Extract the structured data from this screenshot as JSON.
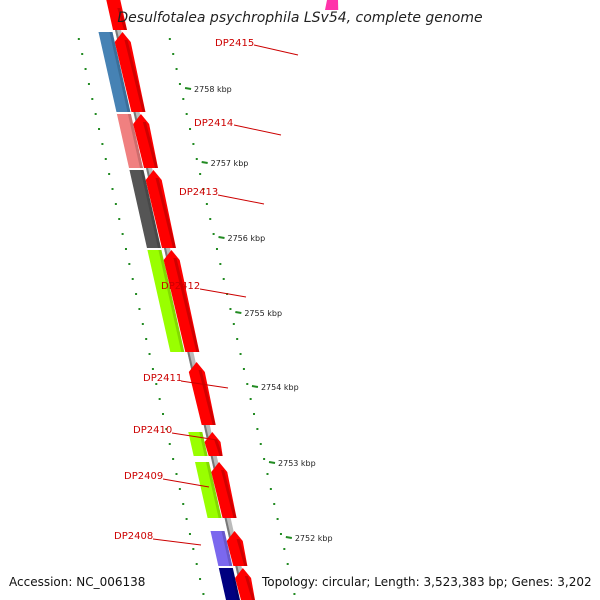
{
  "title": "Desulfotalea psychrophila LSv54, complete genome",
  "footer": {
    "accession": "Accession: NC_006138",
    "summary": "Topology: circular; Length: 3,523,383 bp; Genes: 3,202"
  },
  "colors": {
    "forward_gene": "#ff0000",
    "backbone": "#888888",
    "label_text": "#cc0000",
    "tick": "#228b22",
    "pink": "#ff33aa",
    "blue": "#4682b4",
    "salmon": "#f08080",
    "dark_gray": "#555555",
    "lime": "#99ff00",
    "purple": "#7b68ee",
    "navy": "#000080"
  },
  "scale_labels": [
    "2758 kbp",
    "2757 kbp",
    "2756 kbp",
    "2755 kbp",
    "2754 kbp",
    "2753 kbp",
    "2752 kbp"
  ],
  "genes": [
    {
      "label": "DP2415",
      "category_color": "blue"
    },
    {
      "label": "DP2414",
      "category_color": "salmon"
    },
    {
      "label": "DP2413",
      "category_color": "dark_gray"
    },
    {
      "label": "DP2412",
      "category_color": "lime"
    },
    {
      "label": "DP2411",
      "category_color": ""
    },
    {
      "label": "DP2410",
      "category_color": "lime"
    },
    {
      "label": "DP2409",
      "category_color": "lime"
    },
    {
      "label": "DP2408",
      "category_color": "purple"
    }
  ]
}
